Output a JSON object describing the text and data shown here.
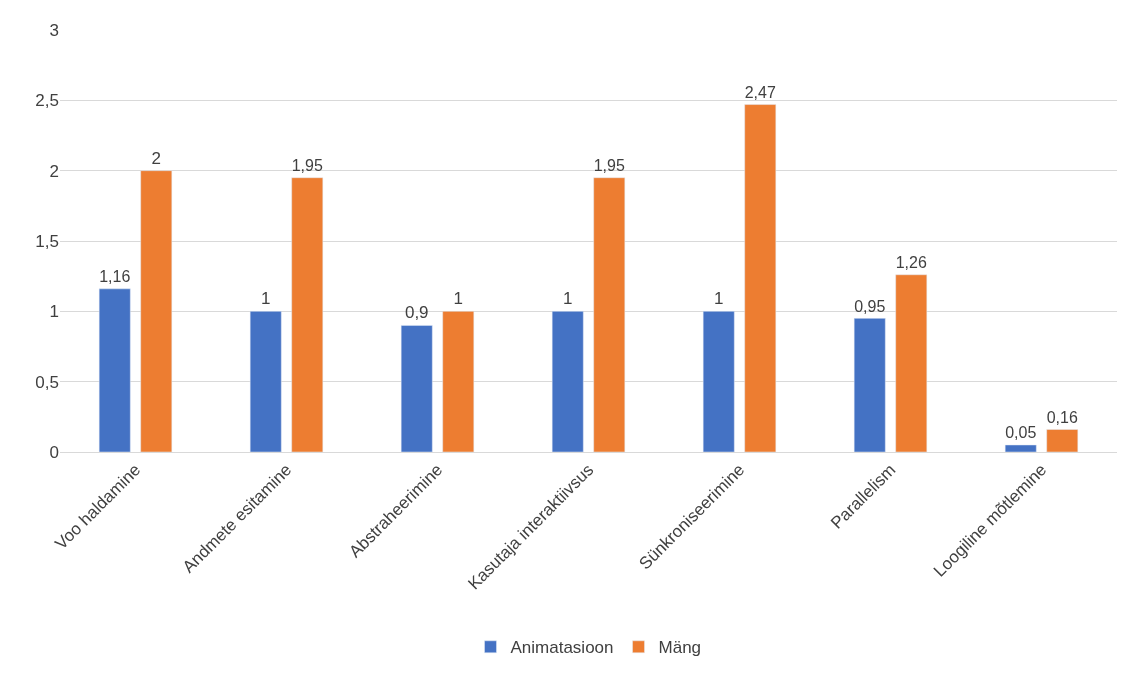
{
  "chart_data": {
    "type": "bar",
    "categories": [
      "Voo haldamine",
      "Andmete esitamine",
      "Abstraheerimine",
      "Kasutaja interaktiivsus",
      "Sünkroniseerimine",
      "Parallelism",
      "Loogiline mõtlemine"
    ],
    "series": [
      {
        "name": "Animatasioon",
        "color": "#4472c4",
        "values": [
          1.16,
          1,
          0.9,
          1,
          1,
          0.95,
          0.05
        ],
        "value_labels": [
          "1,16",
          "1",
          "0,9",
          "1",
          "1",
          "0,95",
          "0,05"
        ]
      },
      {
        "name": "Mäng",
        "color": "#ed7d31",
        "values": [
          2,
          1.95,
          1,
          1.95,
          2.47,
          1.26,
          0.16
        ],
        "value_labels": [
          "2",
          "1,95",
          "1",
          "1,95",
          "2,47",
          "1,26",
          "0,16"
        ]
      }
    ],
    "ylim": [
      0,
      3
    ],
    "yticks": [
      0,
      {
        "value": 0.5,
        "label": "0,5"
      },
      1,
      {
        "value": 1.5,
        "label": "1,5"
      },
      2,
      {
        "value": 2.5,
        "label": "2,5"
      },
      3
    ],
    "grid": "y",
    "legend": "bottom"
  }
}
